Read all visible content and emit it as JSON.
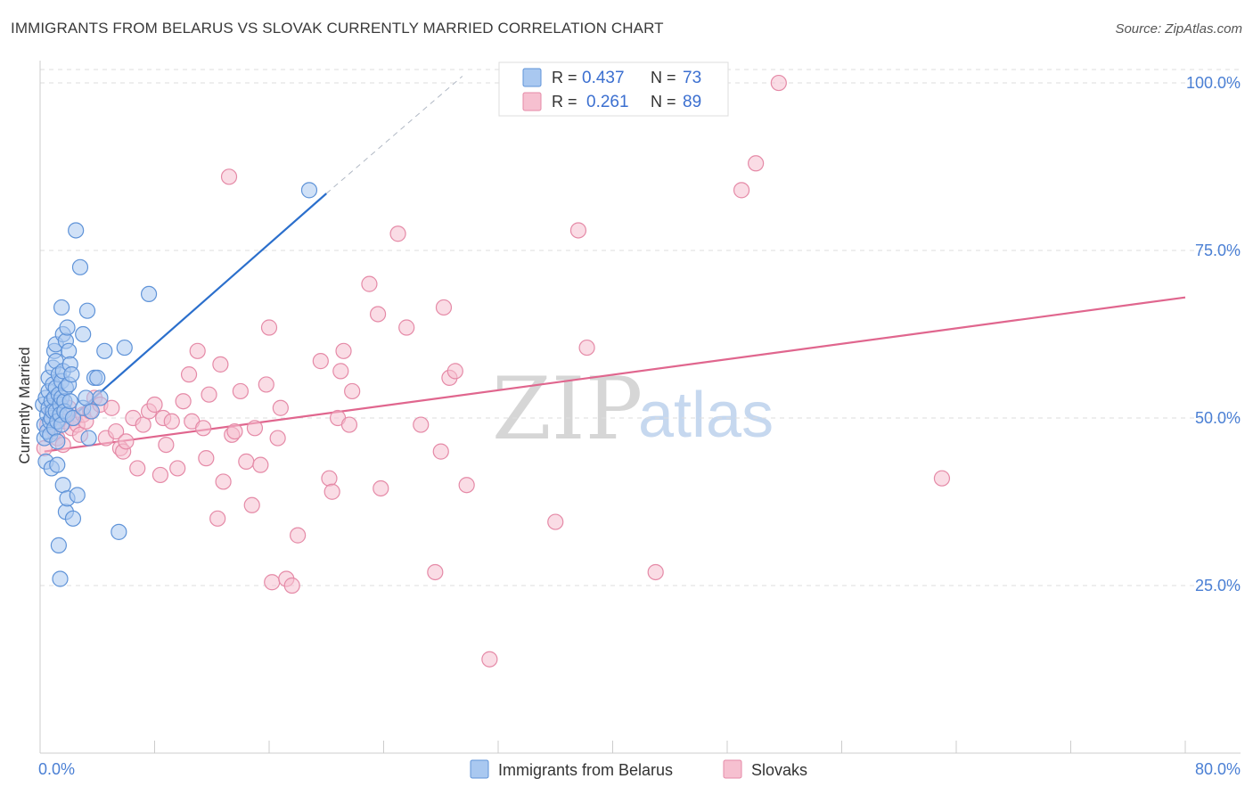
{
  "header": {
    "title": "IMMIGRANTS FROM BELARUS VS SLOVAK CURRENTLY MARRIED CORRELATION CHART",
    "source": "Source: ZipAtlas.com"
  },
  "watermark": {
    "zip": "ZIP",
    "atlas": "atlas"
  },
  "colors": {
    "blue_fill": "#a9c8f0",
    "blue_stroke": "#5f93d8",
    "blue_line": "#2b6fcc",
    "pink_fill": "#f6c0d0",
    "pink_stroke": "#e58aa7",
    "pink_line": "#e0668e",
    "axis_label": "#4a7fd4",
    "grid": "#dddddd"
  },
  "legend": {
    "rows": [
      {
        "r_label": "R =",
        "r_value": "0.437",
        "n_label": "N =",
        "n_value": "73"
      },
      {
        "r_label": "R =",
        "r_value": "0.261",
        "n_label": "N =",
        "n_value": "89"
      }
    ]
  },
  "chart_data": {
    "type": "scatter",
    "title": "IMMIGRANTS FROM BELARUS VS SLOVAK CURRENTLY MARRIED CORRELATION CHART",
    "xlabel": "",
    "ylabel": "Currently Married",
    "xlim": [
      0,
      80
    ],
    "ylim": [
      0,
      102
    ],
    "x_tick_labels": [
      "0.0%",
      "80.0%"
    ],
    "y_ticks": [
      25,
      50,
      75,
      100
    ],
    "y_tick_labels": [
      "25.0%",
      "50.0%",
      "75.0%",
      "100.0%"
    ],
    "grid": true,
    "legend_position": "top-center",
    "series": [
      {
        "name": "Immigrants from Belarus",
        "color": "blue",
        "R": 0.437,
        "N": 73,
        "trend": {
          "x0": 0.3,
          "y0": 46.5,
          "x1": 20.0,
          "y1": 83.5,
          "dash_x1": 29.5,
          "dash_y1": 101.0
        },
        "points": [
          [
            0.2,
            52.0
          ],
          [
            0.3,
            49.0
          ],
          [
            0.3,
            47.0
          ],
          [
            0.4,
            53.0
          ],
          [
            0.4,
            43.5
          ],
          [
            0.5,
            50.5
          ],
          [
            0.5,
            48.0
          ],
          [
            0.6,
            51.5
          ],
          [
            0.6,
            56.0
          ],
          [
            0.6,
            54.0
          ],
          [
            0.7,
            49.5
          ],
          [
            0.7,
            47.5
          ],
          [
            0.8,
            52.5
          ],
          [
            0.8,
            50.0
          ],
          [
            0.8,
            42.5
          ],
          [
            0.9,
            57.5
          ],
          [
            0.9,
            55.0
          ],
          [
            0.9,
            51.0
          ],
          [
            1.0,
            60.0
          ],
          [
            1.0,
            53.0
          ],
          [
            1.0,
            48.5
          ],
          [
            1.1,
            61.0
          ],
          [
            1.1,
            58.5
          ],
          [
            1.1,
            54.5
          ],
          [
            1.1,
            51.0
          ],
          [
            1.2,
            49.5
          ],
          [
            1.2,
            46.5
          ],
          [
            1.2,
            43.0
          ],
          [
            1.3,
            56.5
          ],
          [
            1.3,
            53.5
          ],
          [
            1.3,
            31.0
          ],
          [
            1.4,
            52.0
          ],
          [
            1.4,
            50.5
          ],
          [
            1.4,
            26.0
          ],
          [
            1.5,
            66.5
          ],
          [
            1.5,
            55.5
          ],
          [
            1.5,
            53.0
          ],
          [
            1.5,
            49.0
          ],
          [
            1.6,
            62.5
          ],
          [
            1.6,
            57.0
          ],
          [
            1.6,
            40.0
          ],
          [
            1.7,
            52.5
          ],
          [
            1.7,
            51.0
          ],
          [
            1.8,
            61.5
          ],
          [
            1.8,
            54.5
          ],
          [
            1.8,
            36.0
          ],
          [
            1.9,
            63.5
          ],
          [
            1.9,
            50.5
          ],
          [
            1.9,
            38.0
          ],
          [
            2.0,
            60.0
          ],
          [
            2.0,
            55.0
          ],
          [
            2.1,
            58.0
          ],
          [
            2.1,
            52.5
          ],
          [
            2.2,
            56.5
          ],
          [
            2.3,
            50.0
          ],
          [
            2.3,
            35.0
          ],
          [
            2.5,
            78.0
          ],
          [
            2.6,
            38.5
          ],
          [
            2.8,
            72.5
          ],
          [
            3.0,
            62.5
          ],
          [
            3.0,
            51.5
          ],
          [
            3.2,
            53.0
          ],
          [
            3.3,
            66.0
          ],
          [
            3.4,
            47.0
          ],
          [
            3.6,
            51.0
          ],
          [
            3.8,
            56.0
          ],
          [
            4.0,
            56.0
          ],
          [
            4.2,
            53.0
          ],
          [
            4.5,
            60.0
          ],
          [
            5.5,
            33.0
          ],
          [
            5.9,
            60.5
          ],
          [
            7.6,
            68.5
          ],
          [
            18.8,
            84.0
          ]
        ]
      },
      {
        "name": "Slovaks",
        "color": "pink",
        "R": 0.261,
        "N": 89,
        "trend": {
          "x0": 0.3,
          "y0": 45.0,
          "x1": 80.0,
          "y1": 68.0
        },
        "points": [
          [
            0.3,
            45.5
          ],
          [
            0.5,
            49.0
          ],
          [
            0.8,
            51.0
          ],
          [
            1.0,
            48.0
          ],
          [
            1.2,
            47.0
          ],
          [
            1.4,
            50.5
          ],
          [
            1.6,
            46.0
          ],
          [
            1.8,
            49.5
          ],
          [
            2.0,
            51.5
          ],
          [
            2.2,
            48.5
          ],
          [
            2.4,
            50.0
          ],
          [
            2.6,
            49.0
          ],
          [
            2.8,
            47.5
          ],
          [
            3.0,
            50.5
          ],
          [
            3.2,
            49.5
          ],
          [
            3.5,
            51.0
          ],
          [
            3.8,
            53.0
          ],
          [
            4.2,
            52.0
          ],
          [
            4.6,
            47.0
          ],
          [
            5.0,
            51.5
          ],
          [
            5.3,
            48.0
          ],
          [
            5.6,
            45.5
          ],
          [
            5.8,
            45.0
          ],
          [
            6.0,
            46.5
          ],
          [
            6.5,
            50.0
          ],
          [
            6.8,
            42.5
          ],
          [
            7.2,
            49.0
          ],
          [
            7.6,
            51.0
          ],
          [
            8.0,
            52.0
          ],
          [
            8.4,
            41.5
          ],
          [
            8.6,
            50.0
          ],
          [
            8.8,
            46.0
          ],
          [
            9.2,
            49.5
          ],
          [
            9.6,
            42.5
          ],
          [
            10.0,
            52.5
          ],
          [
            10.4,
            56.5
          ],
          [
            10.6,
            49.5
          ],
          [
            11.0,
            60.0
          ],
          [
            11.4,
            48.5
          ],
          [
            11.6,
            44.0
          ],
          [
            11.8,
            53.5
          ],
          [
            12.4,
            35.0
          ],
          [
            12.6,
            58.0
          ],
          [
            12.8,
            40.5
          ],
          [
            13.2,
            86.0
          ],
          [
            13.4,
            47.5
          ],
          [
            13.6,
            48.0
          ],
          [
            14.0,
            54.0
          ],
          [
            14.4,
            43.5
          ],
          [
            14.8,
            37.0
          ],
          [
            15.0,
            48.5
          ],
          [
            15.4,
            43.0
          ],
          [
            15.8,
            55.0
          ],
          [
            16.0,
            63.5
          ],
          [
            16.2,
            25.5
          ],
          [
            16.6,
            47.0
          ],
          [
            16.8,
            51.5
          ],
          [
            17.2,
            26.0
          ],
          [
            17.6,
            25.0
          ],
          [
            18.0,
            32.5
          ],
          [
            19.6,
            58.5
          ],
          [
            20.2,
            41.0
          ],
          [
            20.4,
            39.0
          ],
          [
            20.8,
            50.0
          ],
          [
            21.0,
            57.0
          ],
          [
            21.2,
            60.0
          ],
          [
            21.6,
            49.0
          ],
          [
            21.8,
            54.0
          ],
          [
            23.0,
            70.0
          ],
          [
            23.6,
            65.5
          ],
          [
            23.8,
            39.5
          ],
          [
            25.0,
            77.5
          ],
          [
            25.6,
            63.5
          ],
          [
            26.6,
            49.0
          ],
          [
            27.6,
            27.0
          ],
          [
            28.0,
            45.0
          ],
          [
            28.2,
            66.5
          ],
          [
            28.6,
            56.0
          ],
          [
            29.0,
            57.0
          ],
          [
            29.8,
            40.0
          ],
          [
            31.4,
            14.0
          ],
          [
            36.0,
            34.5
          ],
          [
            37.6,
            78.0
          ],
          [
            38.2,
            60.5
          ],
          [
            43.0,
            27.0
          ],
          [
            49.0,
            84.0
          ],
          [
            50.0,
            88.0
          ],
          [
            51.6,
            100.0
          ],
          [
            63.0,
            41.0
          ]
        ]
      }
    ]
  }
}
